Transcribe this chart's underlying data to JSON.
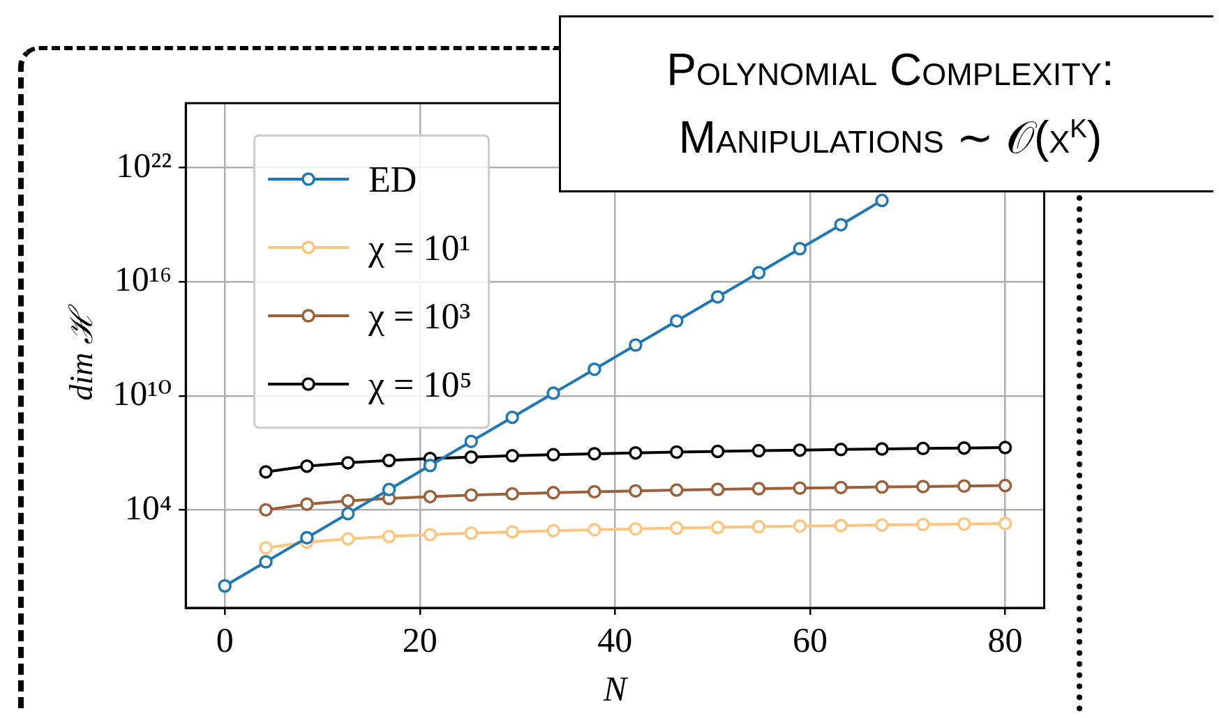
{
  "chart_data": {
    "type": "line",
    "title": "Polynomial Complexity: Manipulations ∼ 𝒪(χ$^{k}$)",
    "xlabel": "N",
    "ylabel": "dim ℋ",
    "x": [
      0,
      4.21,
      8.42,
      12.63,
      16.84,
      21.05,
      25.26,
      29.47,
      33.68,
      37.89,
      42.11,
      46.32,
      50.53,
      54.74,
      58.95,
      63.16,
      67.37,
      71.58,
      75.79,
      80
    ],
    "series": [
      {
        "name": "ED",
        "color": "#1f77b4",
        "values": [
          1,
          18.5,
          343,
          6340,
          117000,
          2170000,
          40000000.0,
          740000000.0,
          13700000000.0,
          250000000000.0,
          4700000000000.0,
          87000000000000.0,
          1600000000000000.0,
          3e+16,
          5.5e+17,
          1e+19,
          1.9e+20,
          null,
          null,
          null
        ]
      },
      {
        "name": "χ = 10¹",
        "color": "#fdc57f",
        "values": [
          null,
          100,
          200,
          300,
          400,
          500,
          600,
          700,
          800,
          900,
          1000,
          1100,
          1200,
          1300,
          1400,
          1500,
          1600,
          1700,
          1800,
          1900
        ]
      },
      {
        "name": "χ = 10³",
        "color": "#9b5f3a",
        "values": [
          null,
          10000,
          20000,
          30000,
          40000,
          50000,
          60000,
          70000,
          80000,
          90000,
          100000,
          110000,
          120000,
          130000,
          140000,
          150000,
          160000,
          170000,
          180000,
          190000
        ]
      },
      {
        "name": "χ = 10⁵",
        "color": "#000000",
        "values": [
          null,
          1000000,
          2000000,
          3000000,
          4000000,
          5000000,
          6000000,
          7000000,
          8000000,
          9000000,
          10000000,
          11000000,
          12000000,
          13000000,
          14000000,
          15000000,
          16000000,
          17000000,
          18000000,
          19000000
        ]
      }
    ],
    "log": "y",
    "xlim": [
      -4,
      84
    ],
    "ylim": [
      0.07,
      2.5e+25
    ],
    "xticks": [
      0,
      20,
      40,
      60,
      80
    ],
    "yticks": [
      {
        "value": 10000,
        "label": "10⁴"
      },
      {
        "value": 10000000000.0,
        "label": "10¹⁰"
      },
      {
        "value": 1e+16,
        "label": "10¹⁶"
      },
      {
        "value": 1e+22,
        "label": "10²²"
      }
    ],
    "grid": true,
    "legend": "top left",
    "marker": "circle",
    "line_style": "solid"
  }
}
